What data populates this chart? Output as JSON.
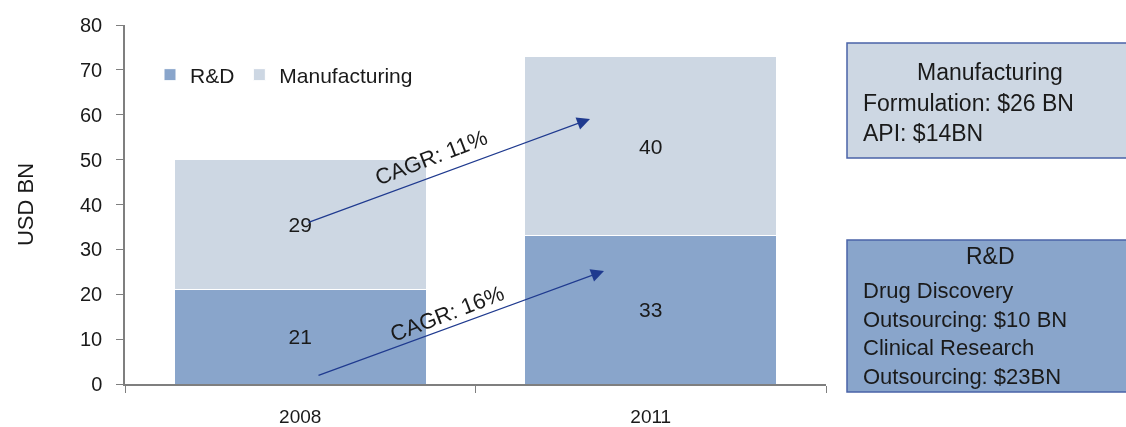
{
  "chart_data": {
    "type": "bar",
    "stacked": true,
    "categories": [
      "2008",
      "2011"
    ],
    "series": [
      {
        "name": "R&D",
        "color": "#89a5cb",
        "values": [
          21,
          33
        ]
      },
      {
        "name": "Manufacturing",
        "color": "#cdd7e3",
        "values": [
          29,
          40
        ]
      }
    ],
    "ylabel": "USD BN",
    "ylim": [
      0,
      80
    ],
    "yticks": [
      0,
      10,
      20,
      30,
      40,
      50,
      60,
      70,
      80
    ],
    "data_labels": true,
    "legend": "top left",
    "annotations": [
      "CAGR: 11%",
      "CAGR: 16%",
      "Manufacturing",
      "Formulation: $26 BN",
      "API: $14BN",
      "R&D",
      "Drug Discovery\nOutsourcing: $10 BN",
      "Clinical Research\nOutsourcing: $23BN"
    ]
  }
}
